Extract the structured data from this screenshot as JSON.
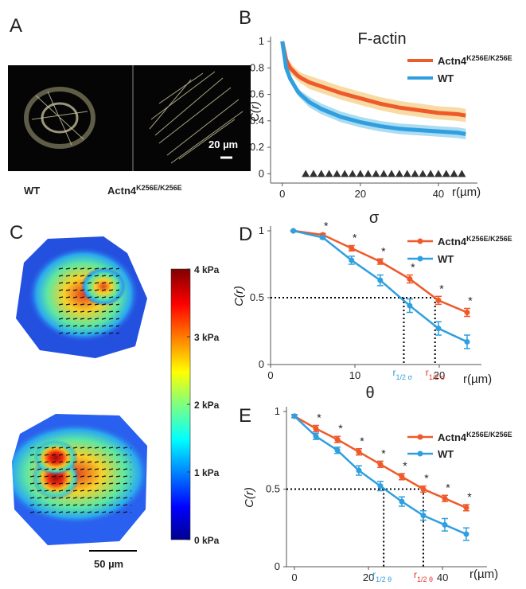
{
  "panel_labels": [
    "A",
    "B",
    "C",
    "D",
    "E"
  ],
  "panel_a": {
    "left_label": "WT",
    "right_label": "Actn4",
    "right_superscript": "K256E/K256E",
    "scale_bar": "20 µm"
  },
  "panel_c": {
    "scale_bar": "50 µm",
    "colorbar_lim": [
      0,
      4
    ],
    "colorbar_ticks": [
      {
        "value": 4,
        "label": "4 kPa"
      },
      {
        "value": 3,
        "label": "3 kPa"
      },
      {
        "value": 2,
        "label": "2 kPa"
      },
      {
        "value": 1,
        "label": "1 kPa"
      },
      {
        "value": 0,
        "label": "0 kPa"
      }
    ]
  },
  "chart_data": [
    {
      "type": "band",
      "title": "F-actin",
      "y_label": "C(r)",
      "x_label": "r(µm)",
      "xlim": [
        -3,
        50
      ],
      "ylim": [
        -0.07,
        1
      ],
      "xticks": [
        0,
        20,
        40
      ],
      "yticks": [
        0,
        0.2,
        0.4,
        0.6,
        0.8,
        1
      ],
      "x": [
        0,
        1,
        2,
        3,
        4,
        5,
        7,
        10,
        15,
        20,
        25,
        30,
        35,
        40,
        45,
        47
      ],
      "series": [
        {
          "name": "Actn4",
          "superscript": "K256E/K256E",
          "color": "#ee5a2a",
          "band_color": "#f5cf86",
          "values": [
            1,
            0.86,
            0.8,
            0.77,
            0.74,
            0.72,
            0.69,
            0.66,
            0.61,
            0.57,
            0.53,
            0.5,
            0.48,
            0.46,
            0.45,
            0.44
          ],
          "errors": [
            0,
            0.03,
            0.04,
            0.04,
            0.04,
            0.04,
            0.05,
            0.05,
            0.05,
            0.05,
            0.05,
            0.05,
            0.05,
            0.05,
            0.05,
            0.05
          ]
        },
        {
          "name": "WT",
          "color": "#2f9fe0",
          "band_color": "#8fd0ee",
          "values": [
            1,
            0.8,
            0.72,
            0.67,
            0.62,
            0.59,
            0.54,
            0.49,
            0.43,
            0.39,
            0.36,
            0.34,
            0.33,
            0.32,
            0.31,
            0.3
          ],
          "errors": [
            0,
            0.03,
            0.03,
            0.03,
            0.03,
            0.03,
            0.04,
            0.04,
            0.04,
            0.04,
            0.04,
            0.04,
            0.04,
            0.04,
            0.04,
            0.04
          ]
        }
      ],
      "significant_x": [
        6,
        8,
        10,
        12,
        14,
        16,
        18,
        20,
        22,
        24,
        26,
        28,
        30,
        32,
        34,
        36,
        38,
        40,
        42,
        44,
        46
      ]
    },
    {
      "type": "line",
      "title": "σ",
      "y_label": "C(r)",
      "x_label": "r(µm)",
      "xlim": [
        0,
        25
      ],
      "ylim": [
        0,
        1
      ],
      "xticks": [
        0,
        10,
        20
      ],
      "yticks": [
        0,
        0.5,
        1
      ],
      "x": [
        2.7,
        6.2,
        9.6,
        13,
        16.5,
        19.9,
        23.3
      ],
      "significance_label": "*",
      "series": [
        {
          "name": "Actn4",
          "superscript": "K256E/K256E",
          "color": "#ee5a2a",
          "values": [
            1,
            0.97,
            0.87,
            0.77,
            0.64,
            0.48,
            0.39
          ],
          "errors": [
            0,
            0.01,
            0.02,
            0.02,
            0.03,
            0.03,
            0.03
          ],
          "significant": [
            false,
            true,
            true,
            true,
            true,
            true,
            true
          ]
        },
        {
          "name": "WT",
          "color": "#2f9fe0",
          "values": [
            1,
            0.95,
            0.78,
            0.63,
            0.44,
            0.27,
            0.17
          ],
          "errors": [
            0,
            0.01,
            0.03,
            0.04,
            0.05,
            0.05,
            0.05
          ]
        }
      ],
      "half_level": 0.5,
      "half_crossings": [
        {
          "x": 15.8,
          "label": "r",
          "subscript": "1/2 σ",
          "color": "#2f9fe0"
        },
        {
          "x": 19.5,
          "label": "r",
          "subscript": "1/2 σ",
          "color": "#e03a2a"
        }
      ]
    },
    {
      "type": "line",
      "title": "θ",
      "y_label": "C(r)",
      "x_label": "r(µm)",
      "xlim": [
        -2.15,
        52
      ],
      "ylim": [
        0,
        1
      ],
      "xticks": [
        0,
        20,
        40
      ],
      "yticks": [
        0,
        0.5,
        1
      ],
      "x": [
        0,
        5.8,
        11.6,
        17.4,
        23.2,
        29,
        34.8,
        40.6,
        46.4
      ],
      "significance_label": "*",
      "series": [
        {
          "name": "Actn4",
          "superscript": "K256E/K256E",
          "color": "#ee5a2a",
          "values": [
            0.97,
            0.89,
            0.82,
            0.74,
            0.66,
            0.58,
            0.5,
            0.44,
            0.38
          ],
          "errors": [
            0.01,
            0.02,
            0.02,
            0.02,
            0.02,
            0.02,
            0.02,
            0.02,
            0.02
          ],
          "significant": [
            false,
            true,
            true,
            true,
            true,
            true,
            true,
            true,
            true
          ]
        },
        {
          "name": "WT",
          "color": "#2f9fe0",
          "values": [
            0.97,
            0.84,
            0.75,
            0.62,
            0.52,
            0.42,
            0.33,
            0.27,
            0.21
          ],
          "errors": [
            0.01,
            0.02,
            0.02,
            0.03,
            0.03,
            0.03,
            0.03,
            0.04,
            0.04
          ]
        }
      ],
      "half_level": 0.5,
      "half_crossings": [
        {
          "x": 24.1,
          "label": "r",
          "subscript": "1/2 θ",
          "color": "#2f9fe0"
        },
        {
          "x": 34.8,
          "label": "r",
          "subscript": "1/2 θ",
          "color": "#e03a2a"
        }
      ]
    }
  ]
}
